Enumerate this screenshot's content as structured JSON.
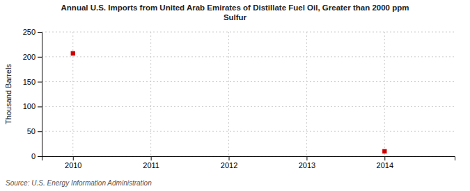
{
  "chart_data": {
    "type": "scatter",
    "title": "Annual U.S. Imports from United Arab Emirates of Distillate Fuel Oil, Greater than 2000 ppm\nSulfur",
    "y_label": "Thousand Barrels",
    "source": "Source: U.S. Energy Information Administration",
    "x": [
      2010,
      2014
    ],
    "values": [
      207,
      10
    ],
    "color": "#cc0000",
    "marker": "square",
    "xlim": [
      2009.6,
      2014.9
    ],
    "ylim": [
      0,
      250
    ],
    "xticks": [
      2010,
      2011,
      2012,
      2013,
      2014
    ],
    "yticks": [
      0,
      50,
      100,
      150,
      200,
      250
    ],
    "grid": true
  }
}
